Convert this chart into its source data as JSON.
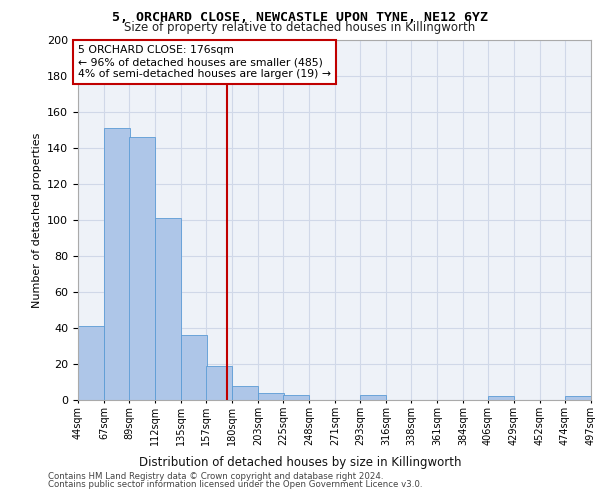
{
  "title_line1": "5, ORCHARD CLOSE, NEWCASTLE UPON TYNE, NE12 6YZ",
  "title_line2": "Size of property relative to detached houses in Killingworth",
  "xlabel": "Distribution of detached houses by size in Killingworth",
  "ylabel": "Number of detached properties",
  "footer_line1": "Contains HM Land Registry data © Crown copyright and database right 2024.",
  "footer_line2": "Contains public sector information licensed under the Open Government Licence v3.0.",
  "property_label": "5 ORCHARD CLOSE: 176sqm",
  "annotation_line1": "← 96% of detached houses are smaller (485)",
  "annotation_line2": "4% of semi-detached houses are larger (19) →",
  "bin_edges": [
    44,
    67,
    89,
    112,
    135,
    157,
    180,
    203,
    225,
    248,
    271,
    293,
    316,
    338,
    361,
    384,
    406,
    429,
    452,
    474,
    497
  ],
  "bar_heights": [
    41,
    151,
    146,
    101,
    36,
    19,
    8,
    4,
    3,
    0,
    0,
    3,
    0,
    0,
    0,
    0,
    2,
    0,
    0,
    2
  ],
  "bar_color": "#aec6e8",
  "bar_edge_color": "#5b9bd5",
  "vline_x": 176,
  "vline_color": "#c00000",
  "annotation_box_color": "#c00000",
  "grid_color": "#d0d8e8",
  "background_color": "#eef2f8",
  "ylim": [
    0,
    200
  ],
  "yticks": [
    0,
    20,
    40,
    60,
    80,
    100,
    120,
    140,
    160,
    180,
    200
  ]
}
